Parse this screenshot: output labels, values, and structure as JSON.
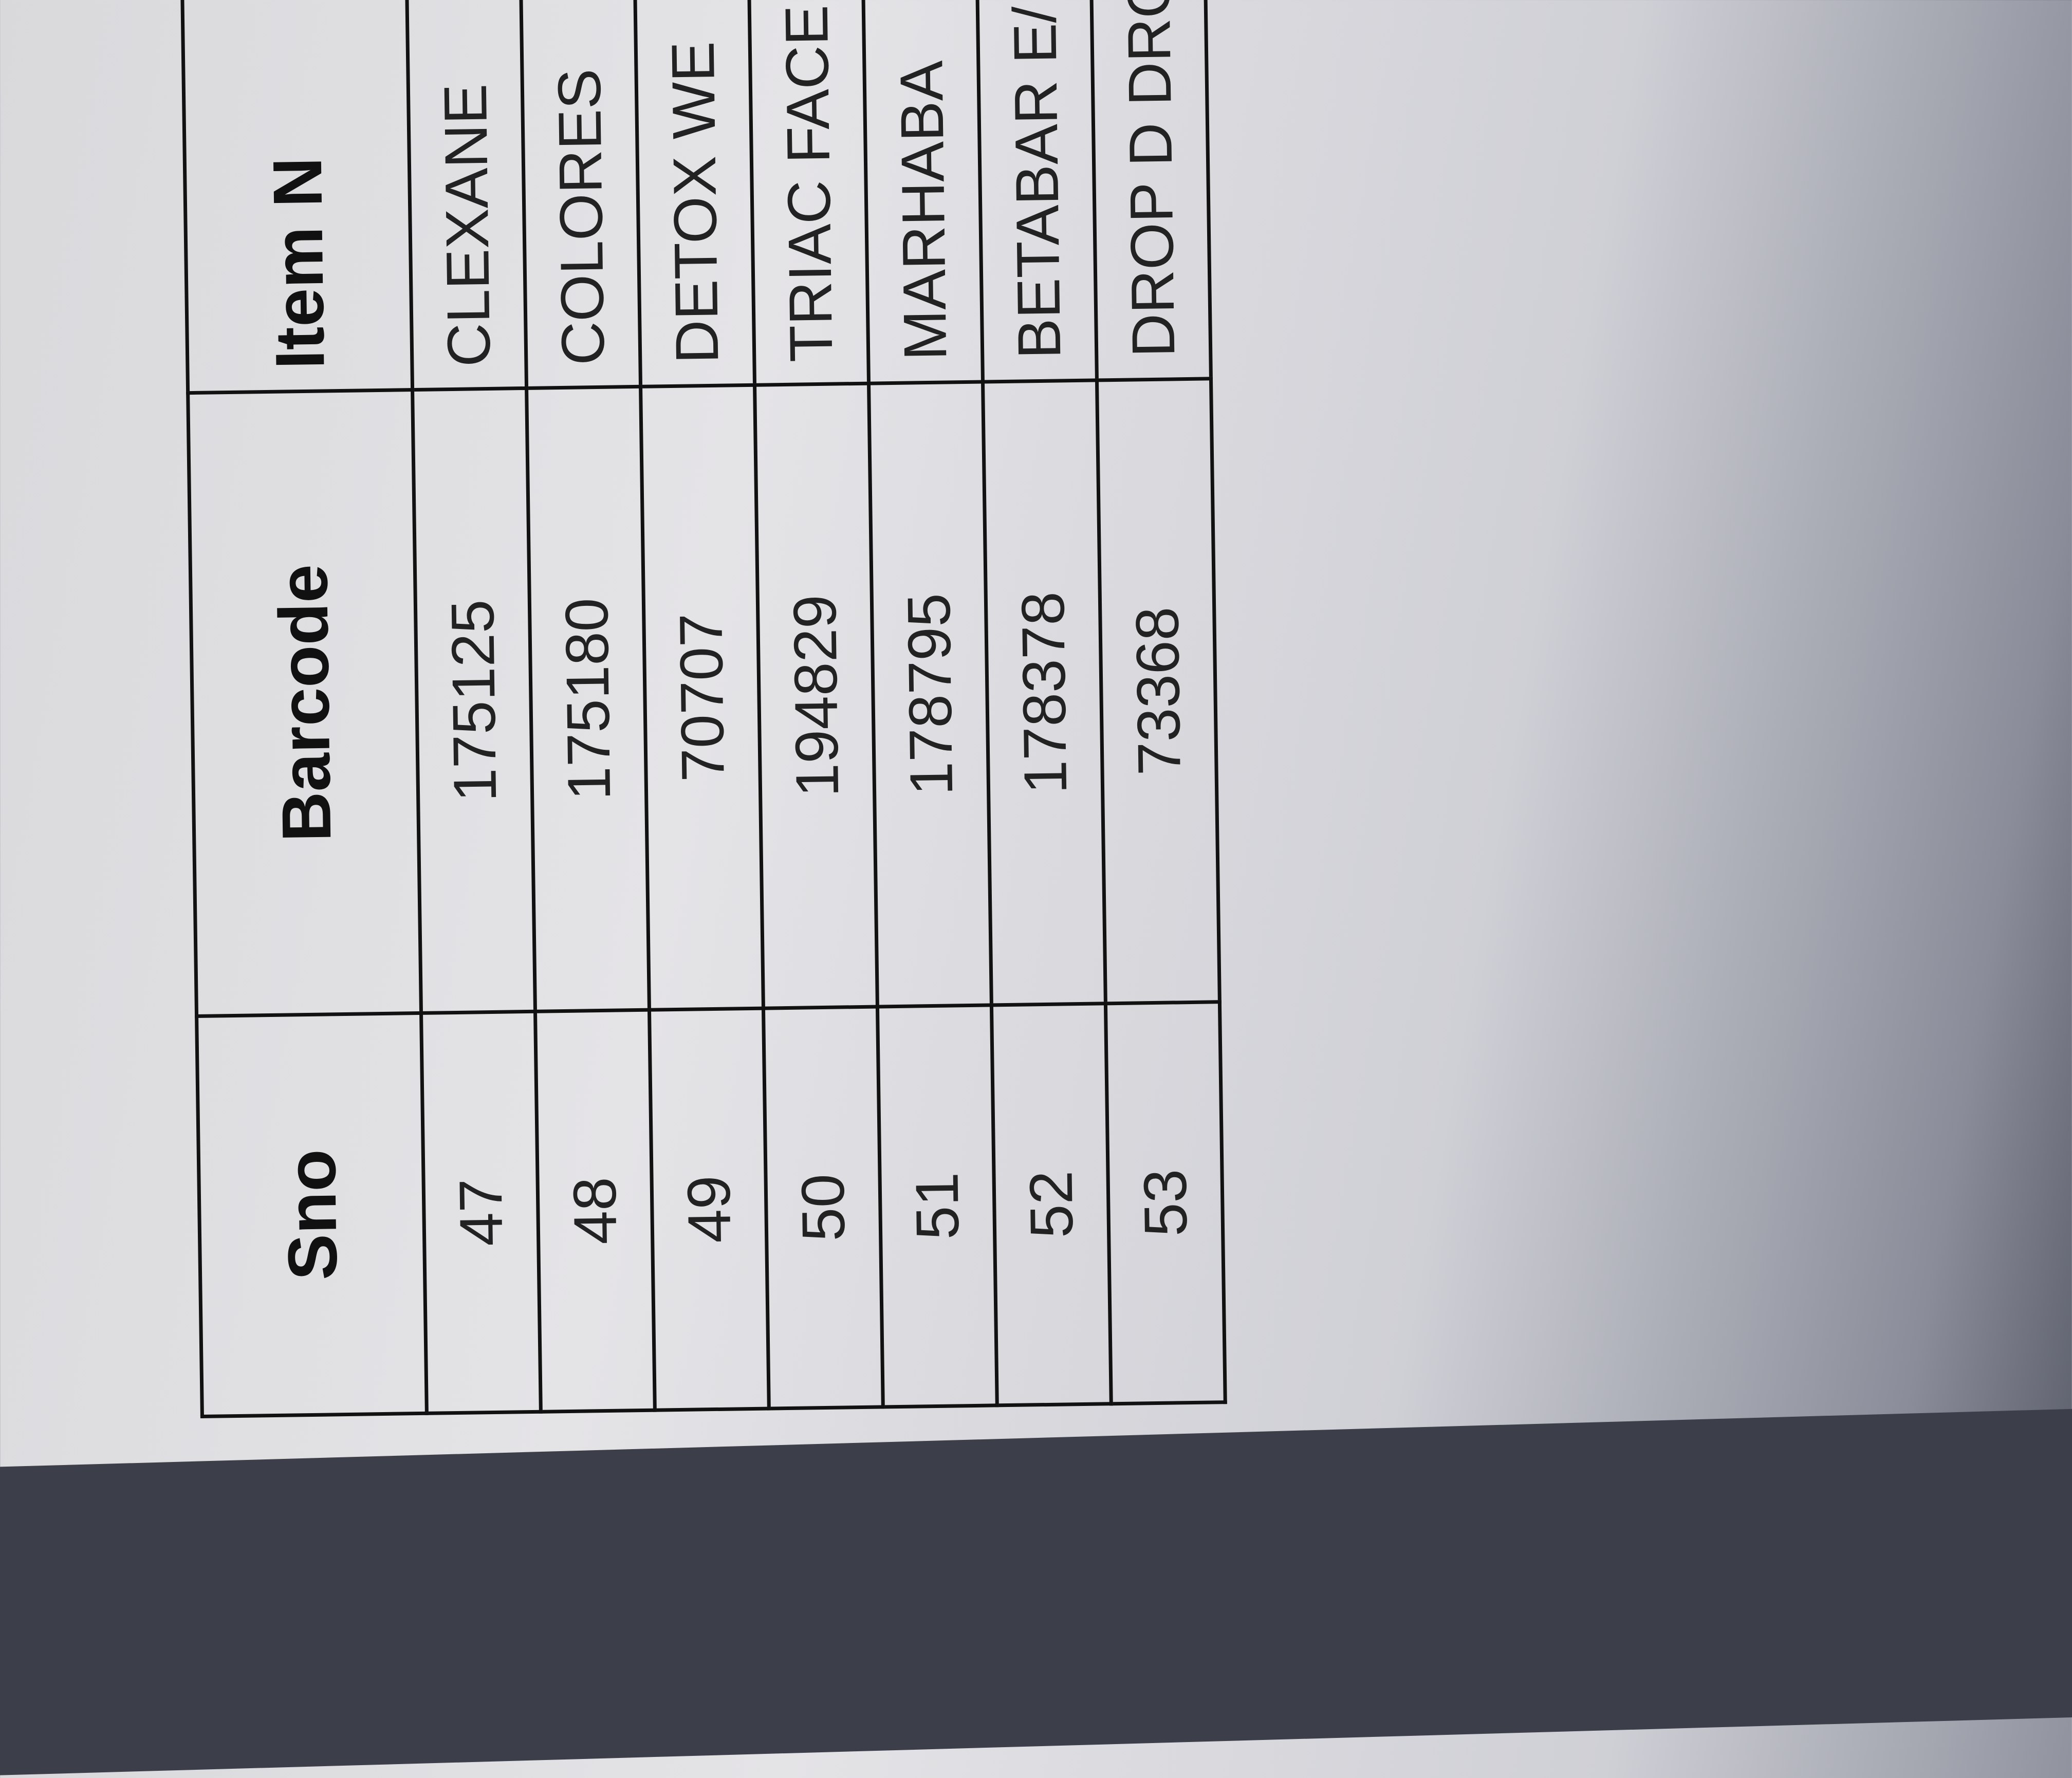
{
  "table": {
    "headers": [
      "Sno",
      "Barcode",
      "Item N"
    ],
    "rows": [
      {
        "sno": "47",
        "barcode": "175125",
        "item": "CLEXANE"
      },
      {
        "sno": "48",
        "barcode": "175180",
        "item": "COLORES"
      },
      {
        "sno": "49",
        "barcode": "70707",
        "item": "DETOX WE"
      },
      {
        "sno": "50",
        "barcode": "194829",
        "item": "TRIAC FACE"
      },
      {
        "sno": "51",
        "barcode": "178795",
        "item": "MARHABA"
      },
      {
        "sno": "52",
        "barcode": "178378",
        "item": "BETABAR E/"
      },
      {
        "sno": "53",
        "barcode": "73368",
        "item": "DROP D DRO"
      }
    ]
  }
}
